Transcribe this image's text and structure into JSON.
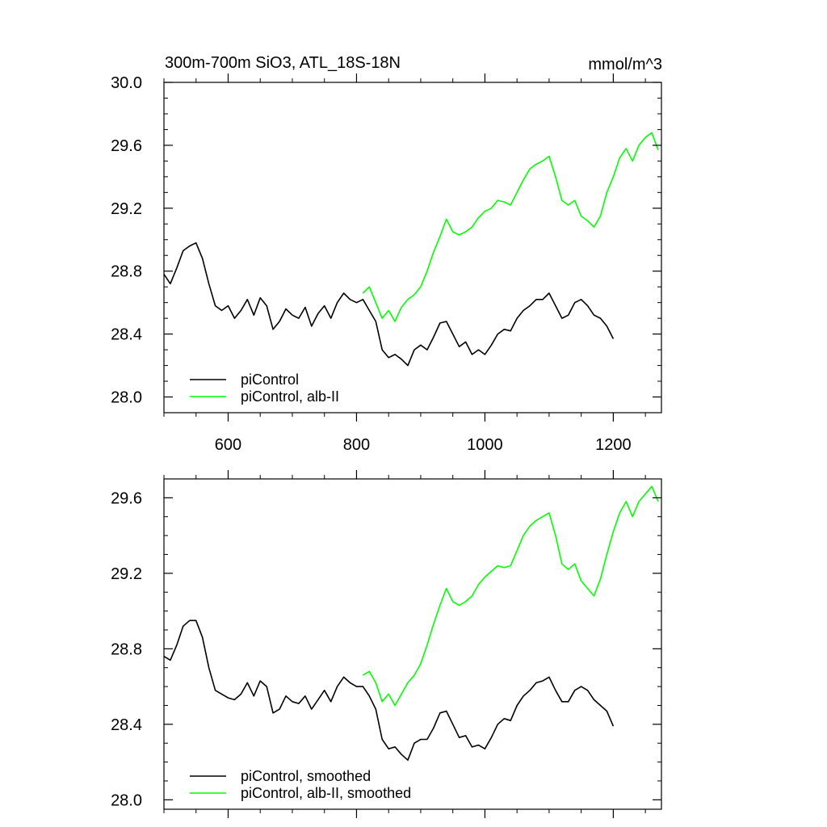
{
  "chart_data": [
    {
      "type": "line",
      "title": "300m-700m SiO3, ATL_18S-18N",
      "title_right": "mmol/m^3",
      "xlim": [
        500,
        1275
      ],
      "ylim": [
        27.9,
        30.0
      ],
      "xticks": [
        600,
        800,
        1000,
        1200
      ],
      "xtick_labels": [
        "600",
        "800",
        "1000",
        "1200"
      ],
      "yticks": [
        28.0,
        28.4,
        28.8,
        29.2,
        29.6,
        30.0
      ],
      "ytick_labels": [
        "28.0",
        "28.4",
        "28.8",
        "29.2",
        "29.6",
        "30.0"
      ],
      "grid": false,
      "legend_position": "bottom-left",
      "series": [
        {
          "name": "piControl",
          "color": "#000000",
          "x": [
            500,
            510,
            520,
            530,
            540,
            550,
            560,
            570,
            580,
            590,
            600,
            610,
            620,
            630,
            640,
            650,
            660,
            670,
            680,
            690,
            700,
            710,
            720,
            730,
            740,
            750,
            760,
            770,
            780,
            790,
            800,
            810,
            820,
            830,
            840,
            850,
            860,
            870,
            880,
            890,
            900,
            910,
            920,
            930,
            940,
            950,
            960,
            970,
            980,
            990,
            1000,
            1010,
            1020,
            1030,
            1040,
            1050,
            1060,
            1070,
            1080,
            1090,
            1100,
            1110,
            1120,
            1130,
            1140,
            1150,
            1160,
            1170,
            1180,
            1190,
            1200
          ],
          "y": [
            28.78,
            28.72,
            28.82,
            28.93,
            28.96,
            28.98,
            28.88,
            28.72,
            28.58,
            28.55,
            28.58,
            28.5,
            28.55,
            28.62,
            28.52,
            28.63,
            28.58,
            28.43,
            28.48,
            28.56,
            28.52,
            28.5,
            28.57,
            28.45,
            28.53,
            28.58,
            28.5,
            28.6,
            28.66,
            28.62,
            28.6,
            28.62,
            28.55,
            28.48,
            28.3,
            28.25,
            28.27,
            28.24,
            28.2,
            28.3,
            28.33,
            28.3,
            28.38,
            28.47,
            28.48,
            28.4,
            28.32,
            28.35,
            28.27,
            28.3,
            28.27,
            28.33,
            28.4,
            28.43,
            28.42,
            28.5,
            28.55,
            28.58,
            28.62,
            28.62,
            28.66,
            28.58,
            28.5,
            28.52,
            28.6,
            28.62,
            28.58,
            28.52,
            28.5,
            28.45,
            28.37
          ]
        },
        {
          "name": "piControl, alb-II",
          "color": "#00ff00",
          "x": [
            810,
            820,
            830,
            840,
            850,
            860,
            870,
            880,
            890,
            900,
            910,
            920,
            930,
            940,
            950,
            960,
            970,
            980,
            990,
            1000,
            1010,
            1020,
            1030,
            1040,
            1050,
            1060,
            1070,
            1080,
            1090,
            1100,
            1110,
            1120,
            1130,
            1140,
            1150,
            1160,
            1170,
            1180,
            1190,
            1200,
            1210,
            1220,
            1230,
            1240,
            1250,
            1260,
            1270
          ],
          "y": [
            28.66,
            28.7,
            28.6,
            28.5,
            28.55,
            28.48,
            28.57,
            28.62,
            28.65,
            28.7,
            28.8,
            28.92,
            29.02,
            29.13,
            29.05,
            29.03,
            29.05,
            29.08,
            29.14,
            29.18,
            29.2,
            29.25,
            29.24,
            29.22,
            29.3,
            29.38,
            29.45,
            29.48,
            29.5,
            29.53,
            29.4,
            29.25,
            29.22,
            29.25,
            29.15,
            29.12,
            29.08,
            29.15,
            29.3,
            29.4,
            29.52,
            29.58,
            29.5,
            29.6,
            29.65,
            29.68,
            29.57
          ]
        }
      ],
      "legend": [
        "piControl",
        "piControl, alb-II"
      ]
    },
    {
      "type": "line",
      "xlim": [
        500,
        1275
      ],
      "ylim": [
        27.95,
        29.7
      ],
      "xticks": [
        600,
        800,
        1000,
        1200
      ],
      "yticks": [
        28.0,
        28.4,
        28.8,
        29.2,
        29.6
      ],
      "ytick_labels": [
        "28.0",
        "28.4",
        "28.8",
        "29.2",
        "29.6"
      ],
      "grid": false,
      "legend_position": "bottom-left",
      "series": [
        {
          "name": "piControl, smoothed",
          "color": "#000000",
          "x": [
            500,
            510,
            520,
            530,
            540,
            550,
            560,
            570,
            580,
            590,
            600,
            610,
            620,
            630,
            640,
            650,
            660,
            670,
            680,
            690,
            700,
            710,
            720,
            730,
            740,
            750,
            760,
            770,
            780,
            790,
            800,
            810,
            820,
            830,
            840,
            850,
            860,
            870,
            880,
            890,
            900,
            910,
            920,
            930,
            940,
            950,
            960,
            970,
            980,
            990,
            1000,
            1010,
            1020,
            1030,
            1040,
            1050,
            1060,
            1070,
            1080,
            1090,
            1100,
            1110,
            1120,
            1130,
            1140,
            1150,
            1160,
            1170,
            1180,
            1190,
            1200
          ],
          "y": [
            28.76,
            28.74,
            28.82,
            28.92,
            28.95,
            28.95,
            28.86,
            28.7,
            28.58,
            28.56,
            28.54,
            28.53,
            28.56,
            28.62,
            28.55,
            28.63,
            28.6,
            28.46,
            28.48,
            28.55,
            28.52,
            28.51,
            28.55,
            28.48,
            28.53,
            28.58,
            28.52,
            28.6,
            28.65,
            28.62,
            28.6,
            28.6,
            28.55,
            28.48,
            28.32,
            28.27,
            28.28,
            28.24,
            28.21,
            28.3,
            28.32,
            28.32,
            28.38,
            28.46,
            28.47,
            28.4,
            28.33,
            28.34,
            28.28,
            28.29,
            28.27,
            28.33,
            28.4,
            28.43,
            28.42,
            28.5,
            28.55,
            28.58,
            28.62,
            28.63,
            28.65,
            28.58,
            28.52,
            28.52,
            28.58,
            28.6,
            28.58,
            28.53,
            28.5,
            28.47,
            28.39
          ]
        },
        {
          "name": "piControl, alb-II, smoothed",
          "color": "#00ff00",
          "x": [
            810,
            820,
            830,
            840,
            850,
            860,
            870,
            880,
            890,
            900,
            910,
            920,
            930,
            940,
            950,
            960,
            970,
            980,
            990,
            1000,
            1010,
            1020,
            1030,
            1040,
            1050,
            1060,
            1070,
            1080,
            1090,
            1100,
            1110,
            1120,
            1130,
            1140,
            1150,
            1160,
            1170,
            1180,
            1190,
            1200,
            1210,
            1220,
            1230,
            1240,
            1250,
            1260,
            1270
          ],
          "y": [
            28.66,
            28.68,
            28.62,
            28.52,
            28.56,
            28.5,
            28.56,
            28.62,
            28.66,
            28.72,
            28.82,
            28.93,
            29.03,
            29.12,
            29.05,
            29.03,
            29.05,
            29.08,
            29.14,
            29.18,
            29.21,
            29.24,
            29.23,
            29.24,
            29.32,
            29.4,
            29.45,
            29.48,
            29.5,
            29.52,
            29.4,
            29.25,
            29.22,
            29.25,
            29.16,
            29.12,
            29.08,
            29.17,
            29.3,
            29.42,
            29.52,
            29.58,
            29.5,
            29.58,
            29.62,
            29.66,
            29.58
          ]
        }
      ],
      "legend": [
        "piControl, smoothed",
        "piControl, alb-II, smoothed"
      ]
    }
  ]
}
